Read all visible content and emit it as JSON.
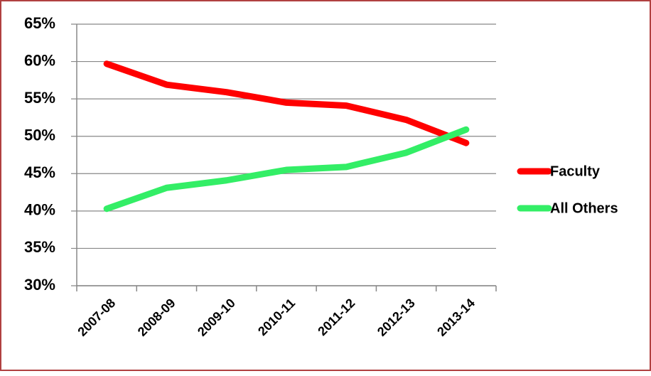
{
  "chart_data": {
    "type": "line",
    "categories": [
      "2007-08",
      "2008-09",
      "2009-10",
      "2010-11",
      "2011-12",
      "2012-13",
      "2013-14"
    ],
    "series": [
      {
        "name": "Faculty",
        "color": "#ff0000",
        "values": [
          59.7,
          56.9,
          55.9,
          54.5,
          54.1,
          52.2,
          49.1
        ]
      },
      {
        "name": "All Others",
        "color": "#33ee66",
        "values": [
          40.3,
          43.1,
          44.1,
          45.5,
          45.9,
          47.8,
          50.9
        ]
      }
    ],
    "ylim": [
      30,
      65
    ],
    "yticks": [
      {
        "value": 30,
        "label": "30%"
      },
      {
        "value": 35,
        "label": "35%"
      },
      {
        "value": 40,
        "label": "40%"
      },
      {
        "value": 45,
        "label": "45%"
      },
      {
        "value": 50,
        "label": "50%"
      },
      {
        "value": 55,
        "label": "55%"
      },
      {
        "value": 60,
        "label": "60%"
      },
      {
        "value": 65,
        "label": "65%"
      }
    ],
    "grid": true,
    "legend": "right"
  }
}
